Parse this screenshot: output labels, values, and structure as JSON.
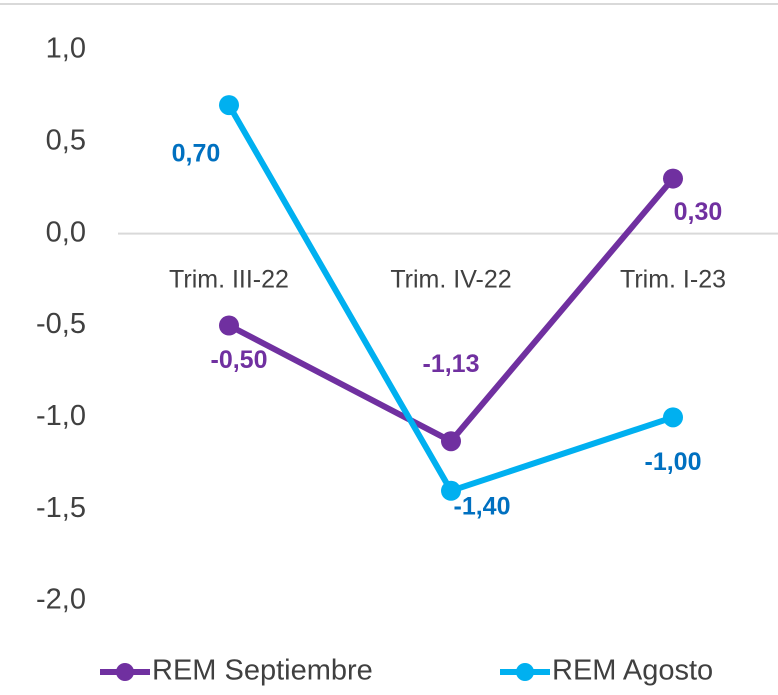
{
  "chart_data": {
    "type": "line",
    "categories": [
      "Trim. III-22",
      "Trim. IV-22",
      "Trim. I-23"
    ],
    "series": [
      {
        "name": "REM Septiembre",
        "color": "#7030a0",
        "label_color": "#7030a0",
        "values": [
          -0.5,
          -1.13,
          0.3
        ],
        "value_labels": [
          "-0,50",
          "-1,13",
          "0,30"
        ]
      },
      {
        "name": "REM Agosto",
        "color": "#00b0f0",
        "label_color": "#0070c0",
        "values": [
          0.7,
          -1.4,
          -1.0
        ],
        "value_labels": [
          "0,70",
          "-1,40",
          "-1,00"
        ]
      }
    ],
    "ylim": [
      -2,
      1
    ],
    "yticks": [
      {
        "value": -2,
        "label": "-2,0"
      },
      {
        "value": -1.5,
        "label": "-1,5"
      },
      {
        "value": -1,
        "label": "-1,0"
      },
      {
        "value": -0.5,
        "label": "-0,5"
      },
      {
        "value": 0,
        "label": "0,0"
      },
      {
        "value": 0.5,
        "label": "0,5"
      },
      {
        "value": 1,
        "label": "1,0"
      }
    ],
    "legend": "bottom"
  }
}
